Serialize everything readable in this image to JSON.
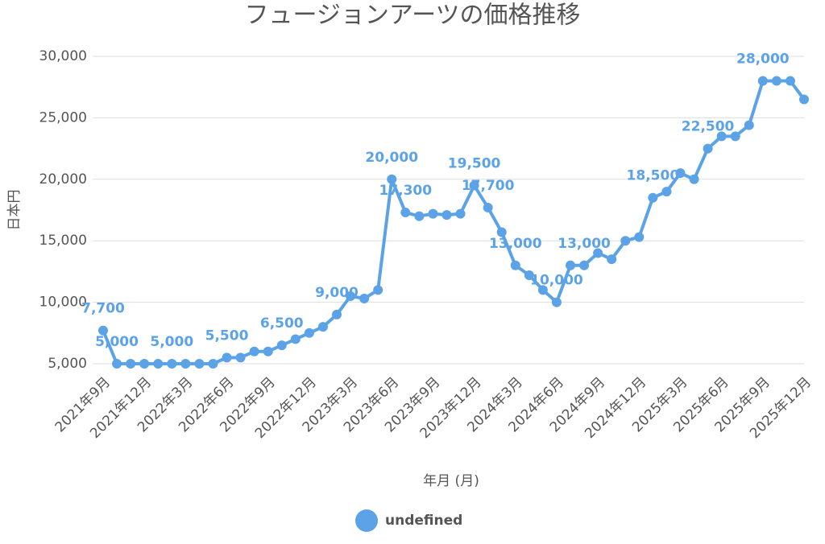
{
  "chart_data": {
    "type": "line",
    "title": "フュージョンアーツの価格推移",
    "x_label": "年月 (月)",
    "y_label": "日本円",
    "categories": [
      "2021年9月",
      null,
      null,
      "2021年12月",
      null,
      null,
      "2022年3月",
      null,
      null,
      "2022年6月",
      null,
      null,
      "2022年9月",
      null,
      null,
      "2022年12月",
      null,
      null,
      "2023年3月",
      null,
      null,
      "2023年6月",
      null,
      null,
      "2023年9月",
      null,
      null,
      "2023年12月",
      null,
      null,
      "2024年3月",
      null,
      null,
      "2024年6月",
      null,
      null,
      "2024年9月",
      null,
      null,
      "2024年12月",
      null,
      null,
      "2025年3月",
      null,
      null,
      "2025年6月",
      null,
      null,
      "2025年9月",
      null,
      null,
      "2025年12月"
    ],
    "series": [
      {
        "name": "undefined",
        "color": "#5ba3e6",
        "values": [
          7700,
          5000,
          5000,
          5000,
          5000,
          5000,
          5000,
          5000,
          5000,
          5500,
          5500,
          6000,
          6000,
          6500,
          7000,
          7500,
          8000,
          9000,
          10500,
          10300,
          11000,
          20000,
          17300,
          17000,
          17200,
          17100,
          17200,
          19500,
          17700,
          15700,
          13000,
          12200,
          11000,
          10000,
          13000,
          13000,
          14000,
          13500,
          15000,
          15300,
          18500,
          19000,
          20500,
          20000,
          22500,
          23500,
          23500,
          24400,
          28000,
          28000,
          28000,
          26500
        ],
        "value_labels": [
          "7,700",
          "5,000",
          null,
          null,
          null,
          "5,000",
          null,
          null,
          null,
          "5,500",
          null,
          null,
          null,
          "6,500",
          null,
          null,
          null,
          "9,000",
          null,
          null,
          null,
          "20,000",
          "17,300",
          null,
          null,
          null,
          null,
          "19,500",
          "17,700",
          null,
          "13,000",
          null,
          null,
          "10,000",
          null,
          "13,000",
          null,
          null,
          null,
          null,
          "18,500",
          null,
          null,
          null,
          "22,500",
          null,
          null,
          null,
          "28,000",
          null,
          null,
          null
        ]
      }
    ],
    "ylim": [
      5000,
      30000
    ],
    "yticks": [
      {
        "value": 5000,
        "label": "5,000"
      },
      {
        "value": 10000,
        "label": "10,000"
      },
      {
        "value": 15000,
        "label": "15,000"
      },
      {
        "value": 20000,
        "label": "20,000"
      },
      {
        "value": 25000,
        "label": "25,000"
      },
      {
        "value": 30000,
        "label": "30,000"
      }
    ],
    "grid": true,
    "legend": "bottom"
  }
}
